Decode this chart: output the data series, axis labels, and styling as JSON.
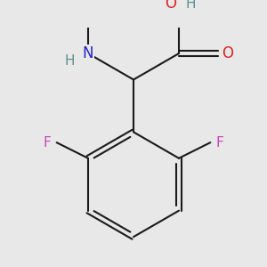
{
  "background_color": "#e8e8e8",
  "bond_color": "#1a1a1a",
  "bond_width": 1.5,
  "dbo": 0.05,
  "atom_colors": {
    "N": "#2222cc",
    "H": "#5a9090",
    "O": "#dd2222",
    "F": "#cc44bb"
  },
  "font_size": 11,
  "figsize": [
    3.0,
    3.0
  ],
  "dpi": 100
}
